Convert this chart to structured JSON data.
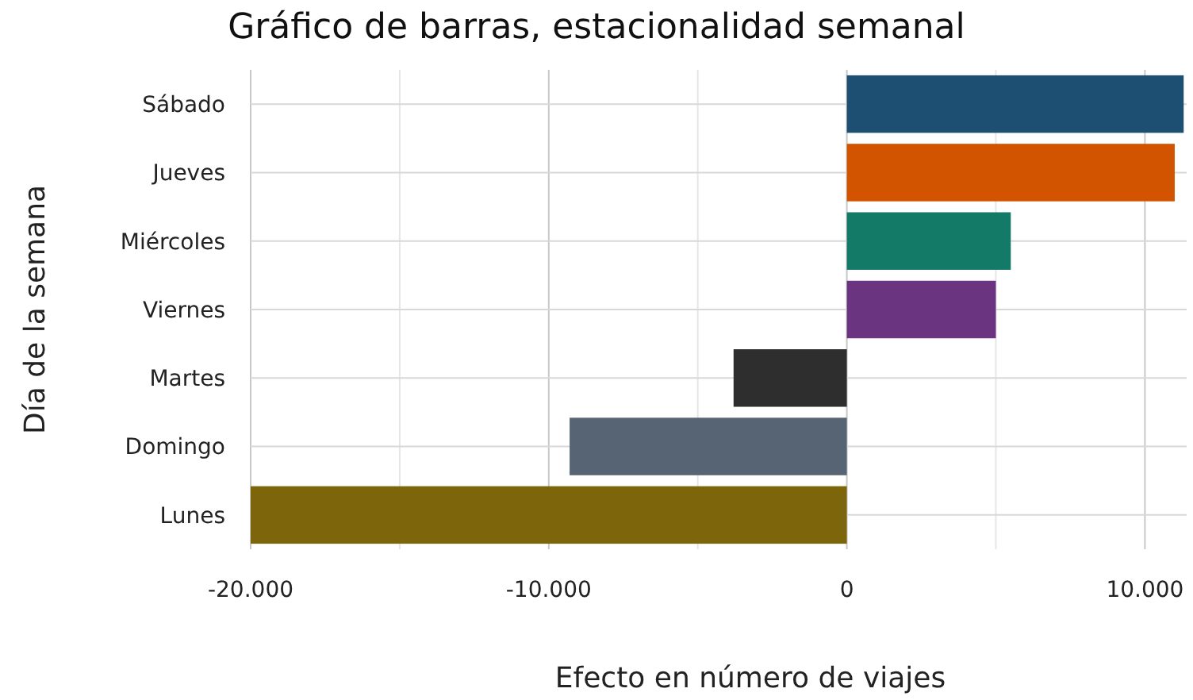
{
  "chart_data": {
    "type": "bar",
    "orientation": "horizontal",
    "title": "Gráfico de barras, estacionalidad semanal",
    "xlabel": "Efecto en número de viajes",
    "ylabel": "Día de la semana",
    "categories": [
      "Sábado",
      "Jueves",
      "Miércoles",
      "Viernes",
      "Martes",
      "Domingo",
      "Lunes"
    ],
    "values": [
      11300,
      11000,
      5500,
      5000,
      -3800,
      -9300,
      -20000
    ],
    "colors": [
      "#1d4f73",
      "#d35400",
      "#147a68",
      "#6a3480",
      "#2e2e2e",
      "#566474",
      "#7d650b"
    ],
    "xlim": [
      -20000,
      11400
    ],
    "xticks": [
      {
        "value": -20000,
        "label": "-20.000"
      },
      {
        "value": -15000,
        "label": null
      },
      {
        "value": -10000,
        "label": "-10.000"
      },
      {
        "value": -5000,
        "label": null
      },
      0,
      {
        "value": 5000,
        "label": null
      },
      {
        "value": 10000,
        "label": "10.000"
      }
    ],
    "grid": true
  }
}
